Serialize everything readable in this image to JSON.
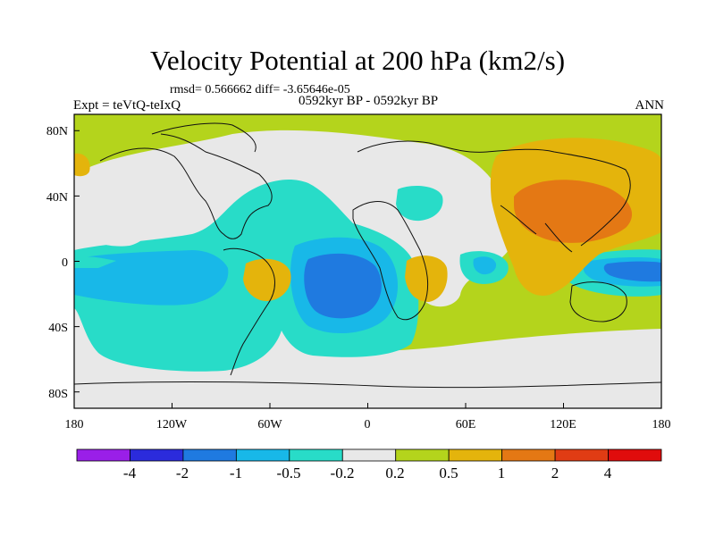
{
  "header": {
    "title": "Velocity Potential at 200 hPa (km2/s)",
    "stats": "rmsd= 0.566662 diff= -3.65646e-05",
    "experiment": "Expt = teVtQ-teIxQ",
    "period": "0592kyr BP - 0592kyr BP",
    "season": "ANN"
  },
  "axes": {
    "lat_labels": [
      "80N",
      "40N",
      "0",
      "40S",
      "80S"
    ],
    "lat_values": [
      80,
      40,
      0,
      -40,
      -80
    ],
    "lon_labels": [
      "180",
      "120W",
      "60W",
      "0",
      "60E",
      "120E",
      "180"
    ],
    "lon_values": [
      -180,
      -120,
      -60,
      0,
      60,
      120,
      180
    ]
  },
  "colorbar": {
    "levels": [
      "-4",
      "-2",
      "-1",
      "-0.5",
      "-0.2",
      "0.2",
      "0.5",
      "1",
      "2",
      "4"
    ],
    "colors": [
      "#9a1fe8",
      "#2b2bdc",
      "#1f7ae0",
      "#18b8e8",
      "#28dcc8",
      "#e8e8e8",
      "#b4d41c",
      "#e4b40c",
      "#e47814",
      "#e03c14",
      "#e00c0c"
    ]
  },
  "map": {
    "lon_range": [
      -180,
      180
    ],
    "lat_range": [
      -90,
      90
    ],
    "background_level_color": "#b4d41c"
  }
}
